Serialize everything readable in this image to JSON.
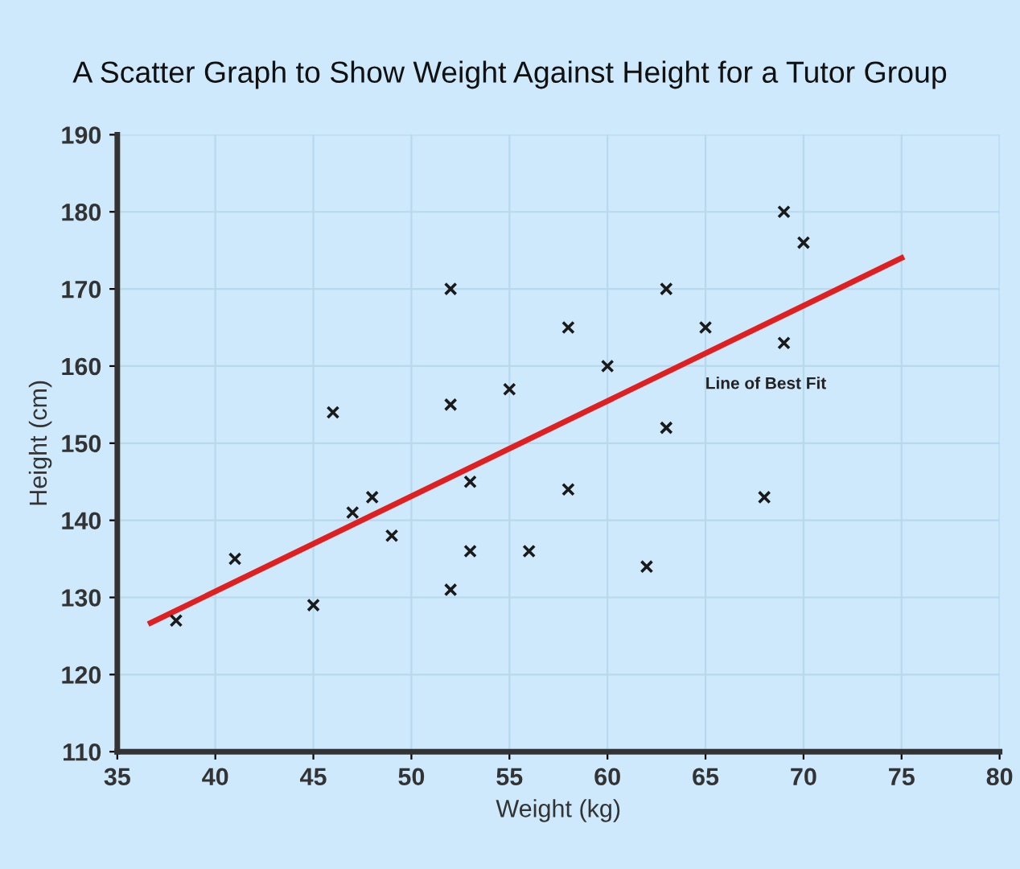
{
  "chart_data": {
    "type": "scatter",
    "title": "A Scatter Graph to Show Weight Against Height for a Tutor Group",
    "xlabel": "Weight (kg)",
    "ylabel": "Height (cm)",
    "xlim": [
      35,
      80
    ],
    "xticks": [
      35,
      40,
      45,
      50,
      55,
      60,
      65,
      70,
      75,
      80
    ],
    "ylim": [
      110,
      190
    ],
    "yticks": [
      110,
      120,
      130,
      140,
      150,
      160,
      170,
      180,
      190
    ],
    "grid": true,
    "marker": "cross",
    "legend": false,
    "series": [
      {
        "color": "#1a1a1a",
        "x": [
          38,
          41,
          45,
          46,
          47,
          48,
          49,
          52,
          52,
          52,
          53,
          53,
          55,
          56,
          58,
          58,
          60,
          62,
          63,
          63,
          65,
          68,
          69,
          69,
          70
        ],
        "values": [
          127,
          135,
          129,
          154,
          141,
          143,
          138,
          170,
          155,
          131,
          145,
          136,
          157,
          136,
          165,
          144,
          160,
          134,
          170,
          152,
          165,
          143,
          180,
          163,
          176
        ]
      },
      {
        "type": "line",
        "color": "#e02020",
        "marker": "none",
        "x": [
          36.7,
          75
        ],
        "values": [
          126.7,
          174
        ]
      }
    ],
    "annotations": [
      "Line of Best Fit"
    ]
  }
}
